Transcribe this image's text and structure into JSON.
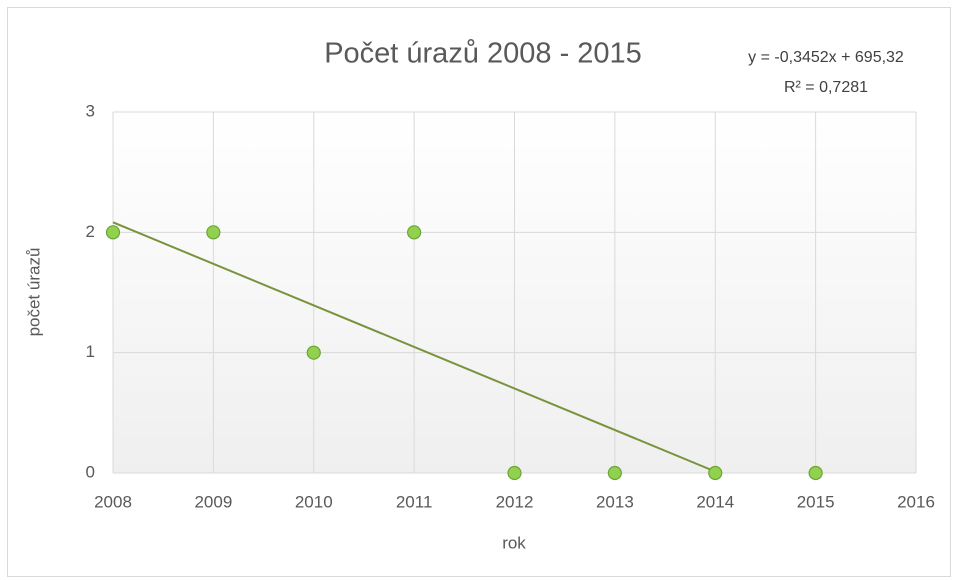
{
  "chart_data": {
    "type": "scatter",
    "title": "Počet úrazů 2008 - 2015",
    "x_label": "rok",
    "y_label": "počet úrazů",
    "series": [
      {
        "name": "počet úrazů",
        "color": "#92d050",
        "x": [
          2008,
          2009,
          2010,
          2011,
          2012,
          2013,
          2014,
          2015
        ],
        "values": [
          2,
          2,
          1,
          2,
          0,
          0,
          0,
          0
        ]
      }
    ],
    "trendline": {
      "type": "linear",
      "color": "#77933c"
    },
    "annotations": [
      "y = -0,3452x + 695,32",
      "R² = 0,7281"
    ],
    "xlim": [
      2008,
      2016
    ],
    "xticks": [
      2008,
      2009,
      2010,
      2011,
      2012,
      2013,
      2014,
      2015,
      2016
    ],
    "ylim": [
      0,
      3
    ],
    "yticks": [
      0,
      1,
      2,
      3
    ],
    "grid": true
  }
}
